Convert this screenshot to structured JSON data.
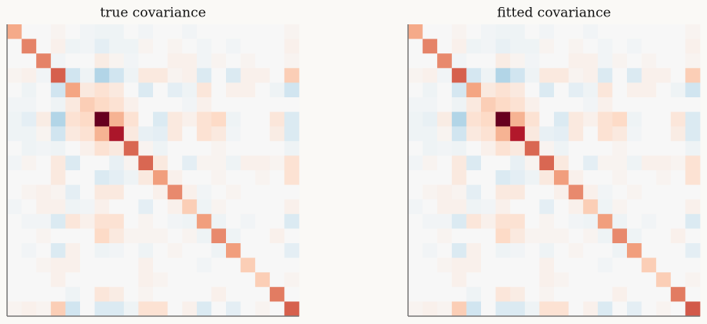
{
  "chart_data": [
    {
      "type": "heatmap",
      "title": "true covariance",
      "colormap": "RdBu_r",
      "clim": [
        -1,
        1
      ],
      "matrix": [
        [
          0.38,
          0,
          0,
          0.03,
          0,
          -0.03,
          -0.05,
          -0.05,
          0,
          -0.03,
          0,
          0,
          -0.03,
          0,
          0,
          0,
          0,
          0,
          0,
          0.03
        ],
        [
          0,
          0.5,
          0,
          0.05,
          -0.05,
          -0.03,
          -0.1,
          -0.05,
          -0.05,
          0.03,
          0,
          0.03,
          0,
          -0.03,
          0,
          -0.03,
          0,
          0,
          0,
          0.05
        ],
        [
          0,
          0,
          0.5,
          -0.03,
          0,
          0,
          0.08,
          0.03,
          -0.03,
          0,
          0,
          0.05,
          0.05,
          -0.03,
          0.03,
          0,
          0.03,
          0,
          0,
          0.03
        ],
        [
          0.03,
          0.05,
          -0.03,
          0.6,
          -0.2,
          -0.05,
          -0.3,
          -0.2,
          -0.05,
          0.1,
          0.1,
          0.03,
          0.05,
          -0.15,
          0,
          -0.15,
          0.05,
          0.05,
          0,
          0.25
        ],
        [
          0,
          -0.05,
          0,
          -0.2,
          0.4,
          0.1,
          0.15,
          0.1,
          0,
          -0.15,
          0,
          -0.1,
          -0.05,
          0.12,
          0,
          0.05,
          0.05,
          0,
          -0.05,
          -0.2
        ],
        [
          -0.03,
          -0.03,
          0,
          -0.05,
          0.1,
          0.25,
          0.2,
          0.15,
          0.05,
          0,
          0,
          0,
          -0.03,
          0.05,
          0,
          0,
          0,
          0,
          0,
          0
        ],
        [
          -0.05,
          -0.1,
          0.08,
          -0.3,
          0.15,
          0.2,
          1.0,
          0.35,
          0.15,
          0,
          -0.15,
          0.1,
          0.05,
          0.15,
          0.2,
          -0.05,
          0,
          0,
          0.12,
          -0.15
        ],
        [
          -0.05,
          -0.05,
          0.03,
          -0.2,
          0.1,
          0.15,
          0.35,
          0.82,
          0.1,
          -0.08,
          -0.1,
          0.1,
          0,
          0.15,
          0.1,
          -0.03,
          0,
          0,
          0.08,
          -0.15
        ],
        [
          0,
          -0.05,
          -0.03,
          -0.05,
          0,
          0.05,
          0.15,
          0.1,
          0.58,
          0.03,
          -0.05,
          0,
          0,
          0,
          0.03,
          0,
          0,
          0,
          0,
          -0.05
        ],
        [
          -0.03,
          0.03,
          0,
          0.1,
          -0.15,
          0,
          0,
          -0.08,
          0.03,
          0.58,
          0.1,
          0,
          -0.1,
          0.03,
          0.03,
          -0.05,
          0.05,
          0.05,
          0.03,
          0.15
        ],
        [
          0,
          0,
          0,
          0.1,
          0,
          0,
          -0.15,
          -0.1,
          -0.05,
          0.1,
          0.42,
          0.05,
          0,
          0,
          0.03,
          0,
          0,
          0.03,
          0,
          0.15
        ],
        [
          0,
          0.03,
          0.05,
          0.03,
          -0.1,
          0,
          0.1,
          0.1,
          0,
          0,
          0.05,
          0.48,
          0.05,
          -0.03,
          0,
          0.03,
          0,
          0,
          0,
          0
        ],
        [
          -0.03,
          0,
          0.05,
          0.05,
          -0.05,
          -0.03,
          0.05,
          0,
          0,
          -0.1,
          0,
          0.05,
          0.25,
          -0.05,
          0.03,
          0,
          0,
          0,
          0,
          0.05
        ],
        [
          0,
          -0.03,
          -0.03,
          -0.15,
          0.12,
          0.05,
          0.15,
          0.15,
          0,
          0.03,
          0,
          -0.03,
          -0.05,
          0.42,
          -0.05,
          0,
          -0.03,
          0,
          0,
          -0.15
        ],
        [
          0,
          0,
          0.03,
          0,
          0,
          0,
          0.2,
          0.1,
          0.03,
          0.03,
          0.03,
          0,
          0.03,
          -0.05,
          0.48,
          -0.05,
          0,
          0,
          0.05,
          0
        ],
        [
          0,
          -0.03,
          0,
          -0.15,
          0.05,
          0,
          -0.05,
          -0.03,
          0,
          -0.05,
          0,
          0.03,
          0,
          0,
          -0.05,
          0.42,
          0,
          0,
          0,
          -0.1
        ],
        [
          0,
          0,
          0.03,
          0.05,
          0.05,
          0,
          0,
          0,
          0,
          0.05,
          0,
          0,
          0,
          -0.03,
          0,
          0,
          0.25,
          0,
          0,
          0
        ],
        [
          0,
          0,
          0,
          0.05,
          0,
          0,
          0,
          0,
          0,
          0.05,
          0.03,
          0,
          0,
          0,
          0,
          0,
          0,
          0.25,
          0,
          0.03
        ],
        [
          0,
          0,
          0,
          0,
          -0.05,
          0,
          0.12,
          0.08,
          0,
          0.03,
          0,
          0,
          0,
          0,
          0.05,
          0,
          0,
          0,
          0.52,
          0
        ],
        [
          0.03,
          0.05,
          0.03,
          0.25,
          -0.2,
          0,
          -0.15,
          -0.15,
          -0.05,
          0.15,
          0.15,
          0,
          0.05,
          -0.15,
          0,
          -0.1,
          0,
          0.03,
          0,
          0.6
        ]
      ]
    },
    {
      "type": "heatmap",
      "title": "fitted covariance",
      "colormap": "RdBu_r",
      "clim": [
        -1,
        1
      ],
      "matrix": [
        [
          0.38,
          0,
          0,
          0.03,
          0,
          -0.03,
          -0.05,
          -0.05,
          0,
          -0.03,
          0,
          0,
          -0.03,
          0,
          0,
          0,
          0,
          0,
          0,
          0.03
        ],
        [
          0,
          0.5,
          0,
          0.05,
          -0.05,
          -0.03,
          -0.08,
          -0.05,
          -0.05,
          0.03,
          0,
          0.03,
          0,
          -0.03,
          0,
          -0.03,
          0,
          0,
          0,
          0.05
        ],
        [
          0,
          0,
          0.48,
          -0.03,
          0,
          0,
          0.08,
          0.03,
          -0.03,
          0,
          0,
          0.05,
          0.05,
          -0.03,
          0.03,
          0,
          0.03,
          0,
          0,
          0.03
        ],
        [
          0.03,
          0.05,
          -0.03,
          0.6,
          -0.18,
          -0.05,
          -0.3,
          -0.2,
          -0.05,
          0.1,
          0.1,
          0.03,
          0.05,
          -0.15,
          0,
          -0.15,
          0.05,
          0.05,
          0,
          0.25
        ],
        [
          0,
          -0.05,
          0,
          -0.18,
          0.4,
          0.1,
          0.15,
          0.1,
          0,
          -0.15,
          0,
          -0.1,
          -0.05,
          0.12,
          0,
          0.05,
          0.05,
          0,
          -0.05,
          -0.2
        ],
        [
          -0.03,
          -0.03,
          0,
          -0.05,
          0.1,
          0.25,
          0.2,
          0.15,
          0.05,
          0,
          0,
          0,
          -0.03,
          0.05,
          0,
          0,
          0,
          0,
          0,
          0
        ],
        [
          -0.05,
          -0.08,
          0.08,
          -0.3,
          0.15,
          0.2,
          1.0,
          0.35,
          0.15,
          0,
          -0.15,
          0.1,
          0.05,
          0.15,
          0.2,
          -0.05,
          0,
          0,
          0.12,
          -0.15
        ],
        [
          -0.05,
          -0.05,
          0.03,
          -0.2,
          0.1,
          0.15,
          0.35,
          0.8,
          0.1,
          -0.08,
          -0.1,
          0.1,
          0,
          0.15,
          0.1,
          -0.03,
          0,
          0,
          0.08,
          -0.15
        ],
        [
          0,
          -0.05,
          -0.03,
          -0.05,
          0,
          0.05,
          0.15,
          0.1,
          0.58,
          0.03,
          -0.05,
          0,
          0,
          0,
          0.03,
          0,
          0,
          0,
          0,
          -0.05
        ],
        [
          -0.03,
          0.03,
          0,
          0.1,
          -0.15,
          0,
          0,
          -0.08,
          0.03,
          0.58,
          0.1,
          0,
          -0.1,
          0.03,
          0.03,
          -0.05,
          0.05,
          0.05,
          0.03,
          0.15
        ],
        [
          0,
          0,
          0,
          0.1,
          0,
          0,
          -0.15,
          -0.1,
          -0.05,
          0.1,
          0.42,
          0.05,
          0,
          0,
          0.03,
          0,
          0,
          0.03,
          0,
          0.15
        ],
        [
          0,
          0.03,
          0.05,
          0.03,
          -0.1,
          0,
          0.1,
          0.1,
          0,
          0,
          0.05,
          0.48,
          0.05,
          -0.03,
          0,
          0.03,
          0,
          0,
          0,
          0
        ],
        [
          -0.03,
          0,
          0.05,
          0.05,
          -0.05,
          -0.03,
          0.05,
          0,
          0,
          -0.1,
          0,
          0.05,
          0.25,
          -0.05,
          0.03,
          0,
          0,
          0,
          0,
          0.05
        ],
        [
          0,
          -0.03,
          -0.03,
          -0.15,
          0.12,
          0.05,
          0.15,
          0.15,
          0,
          0.03,
          0,
          -0.03,
          -0.05,
          0.42,
          -0.05,
          0,
          -0.03,
          0,
          0,
          -0.15
        ],
        [
          0,
          0,
          0.03,
          0,
          0,
          0,
          0.2,
          0.1,
          0.03,
          0.03,
          0.03,
          0,
          0.03,
          -0.05,
          0.48,
          -0.05,
          0,
          0,
          0.05,
          0
        ],
        [
          0,
          -0.03,
          0,
          -0.15,
          0.05,
          0,
          -0.05,
          -0.03,
          0,
          -0.05,
          0,
          0.03,
          0,
          0,
          -0.05,
          0.42,
          0,
          0,
          0,
          -0.1
        ],
        [
          0,
          0,
          0.03,
          0.05,
          0.05,
          0,
          0,
          0,
          0,
          0.05,
          0,
          0,
          0,
          -0.03,
          0,
          0,
          0.25,
          0,
          0,
          0
        ],
        [
          0,
          0,
          0,
          0.05,
          0,
          0,
          0,
          0,
          0,
          0.05,
          0.03,
          0,
          0,
          0,
          0,
          0,
          0,
          0.25,
          0,
          0.03
        ],
        [
          0,
          0,
          0,
          0,
          -0.05,
          0,
          0.12,
          0.08,
          0,
          0.03,
          0,
          0,
          0,
          0,
          0.05,
          0,
          0,
          0,
          0.52,
          0
        ],
        [
          0.03,
          0.05,
          0.03,
          0.25,
          -0.2,
          0,
          -0.15,
          -0.15,
          -0.05,
          0.15,
          0.15,
          0,
          0.05,
          -0.15,
          0,
          -0.1,
          0,
          0.03,
          0,
          0.62
        ]
      ]
    }
  ]
}
